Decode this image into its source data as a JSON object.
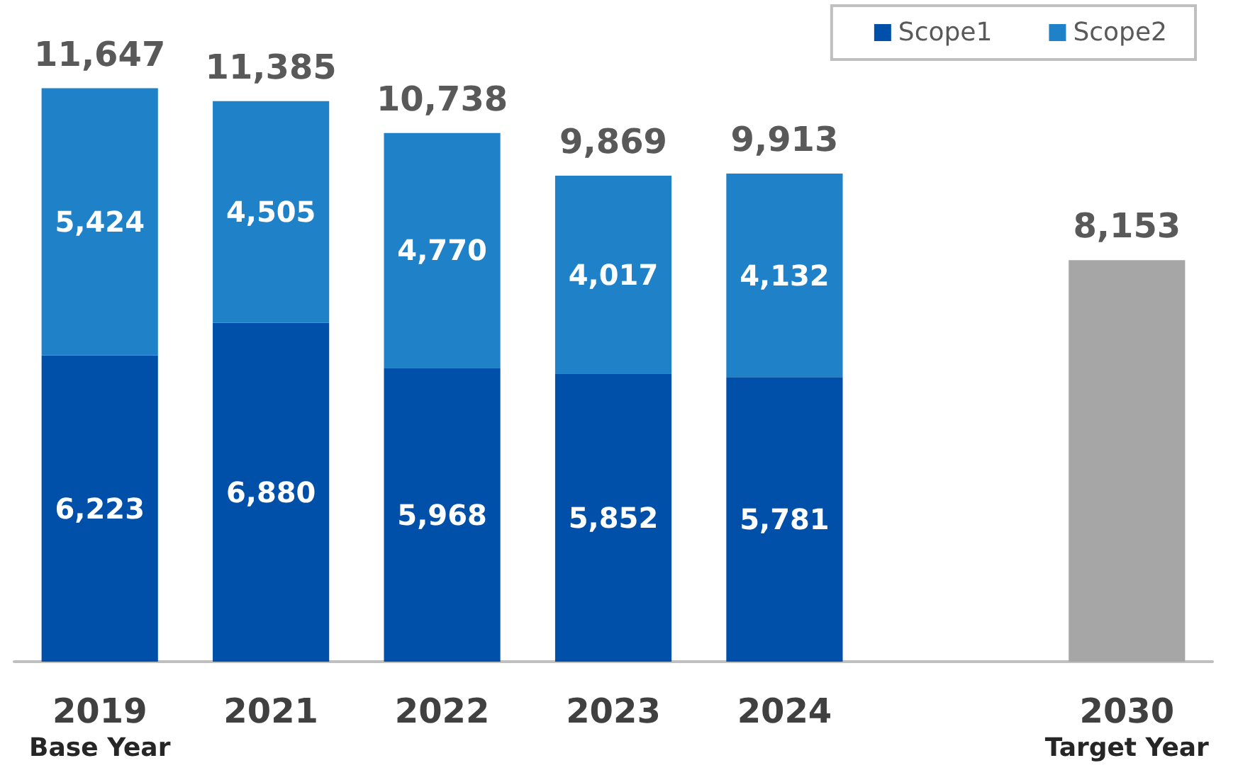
{
  "chart_data": {
    "type": "bar",
    "stacked": true,
    "categories": [
      "2019\nBase Year",
      "2021",
      "2022",
      "2023",
      "2024",
      null,
      "2030\nTarget Year"
    ],
    "series": [
      {
        "name": "Scope1",
        "color": "#0050aa",
        "values": [
          6223,
          6880,
          5968,
          5852,
          5781,
          null,
          null
        ],
        "value_labels": [
          "6,223",
          "6,880",
          "5,968",
          "5,852",
          "5,781",
          null,
          null
        ]
      },
      {
        "name": "Scope2",
        "color": "#1f82c8",
        "values": [
          5424,
          4505,
          4770,
          4017,
          4132,
          null,
          null
        ],
        "value_labels": [
          "5,424",
          "4,505",
          "4,770",
          "4,017",
          "4,132",
          null,
          null
        ]
      },
      {
        "color": "#a6a6a6",
        "values": [
          null,
          null,
          null,
          null,
          null,
          null,
          8153
        ],
        "value_labels": [
          null,
          null,
          null,
          null,
          null,
          null,
          "8,153"
        ]
      }
    ],
    "totals": [
      "11,647",
      "11,385",
      "10,738",
      "9,869",
      "9,913",
      null,
      null
    ],
    "legend": "top right"
  }
}
